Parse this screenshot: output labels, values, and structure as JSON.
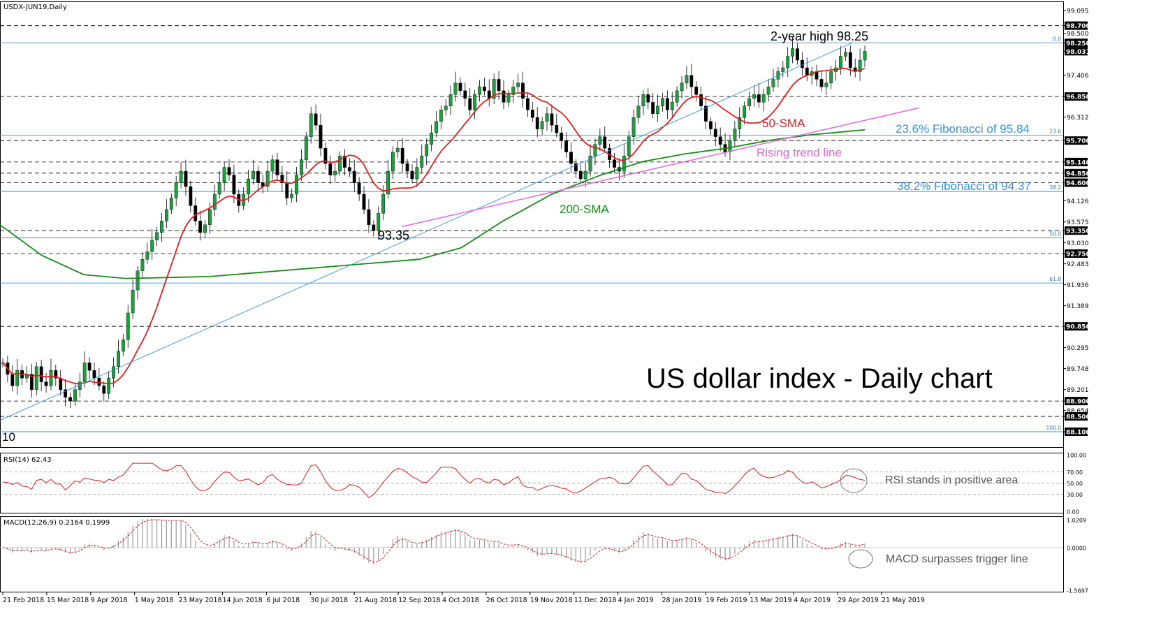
{
  "chart_data": {
    "type": "line",
    "symbol": "USDX-JUN19,Daily",
    "title": "US dollar index - Daily chart",
    "x_dates": [
      "21 Feb 2018",
      "15 Mar 2018",
      "9 Apr 2018",
      "1 May 2018",
      "23 May 2018",
      "14 Jun 2018",
      "6 Jul 2018",
      "30 Jul 2018",
      "21 Aug 2018",
      "12 Sep 2018",
      "4 Oct 2018",
      "26 Oct 2018",
      "19 Nov 2018",
      "11 Dec 2018",
      "4 Jan 2019",
      "28 Jan 2019",
      "19 Feb 2019",
      "13 Mar 2019",
      "4 Apr 2019",
      "29 Apr 2019",
      "21 May 2019"
    ],
    "price_ticks": [
      "99.095",
      "98.700",
      "98.500",
      "98.250",
      "98.031",
      "97.406",
      "96.850",
      "96.312",
      "95.700",
      "95.140",
      "94.850",
      "94.600",
      "94.126",
      "93.575",
      "93.350",
      "93.030",
      "92.750",
      "92.483",
      "91.936",
      "91.389",
      "90.850",
      "90.295",
      "89.748",
      "89.201",
      "88.900",
      "88.654",
      "88.500",
      "88.100"
    ],
    "boxed_levels": [
      "98.700",
      "98.250",
      "98.031",
      "96.850",
      "95.700",
      "95.140",
      "94.850",
      "94.600",
      "93.350",
      "92.750",
      "90.850",
      "88.900",
      "88.500",
      "88.100"
    ],
    "horizontal_levels": [
      98.7,
      96.85,
      95.7,
      95.14,
      94.85,
      94.6,
      93.35,
      92.75,
      90.85,
      88.9,
      88.5
    ],
    "fib_levels": [
      {
        "tag": "0.0",
        "value": 98.25
      },
      {
        "tag": "23.6",
        "value": 95.84
      },
      {
        "tag": "38.2",
        "value": 94.37
      },
      {
        "tag": "50.0",
        "value": 93.16
      },
      {
        "tag": "61.8",
        "value": 91.98
      },
      {
        "tag": "100.0",
        "value": 88.1
      }
    ],
    "annotations": {
      "high": "2-year high 98.25",
      "low": "93.35",
      "fib236": "23.6% Fibonacci of 95.84",
      "fib382": "38.2% Fibonacci of 94.37",
      "sma50": "50-SMA",
      "sma200": "200-SMA",
      "trend": "Rising trend line",
      "start_low": "10"
    },
    "close_series": [
      89.9,
      89.6,
      89.3,
      89.7,
      89.5,
      89.6,
      89.2,
      89.8,
      89.4,
      89.3,
      89.7,
      89.5,
      89.2,
      89.0,
      88.9,
      89.2,
      89.4,
      89.9,
      89.7,
      89.5,
      89.3,
      89.1,
      89.5,
      89.8,
      90.2,
      90.5,
      91.2,
      91.8,
      92.3,
      92.6,
      92.8,
      93.1,
      93.3,
      93.6,
      93.9,
      94.2,
      94.6,
      94.9,
      94.5,
      94.0,
      93.6,
      93.3,
      93.5,
      93.9,
      94.3,
      94.6,
      95.0,
      94.8,
      94.3,
      94.0,
      94.3,
      94.7,
      94.9,
      94.6,
      94.5,
      94.9,
      95.2,
      94.8,
      94.6,
      94.2,
      94.3,
      94.8,
      95.2,
      95.8,
      96.4,
      96.1,
      95.5,
      95.1,
      94.8,
      94.9,
      95.3,
      95.0,
      94.9,
      94.6,
      94.3,
      93.9,
      93.5,
      93.35,
      93.8,
      94.3,
      94.9,
      95.4,
      95.5,
      95.1,
      94.9,
      94.7,
      95.0,
      95.3,
      95.6,
      95.9,
      96.2,
      96.5,
      96.6,
      96.9,
      97.2,
      97.0,
      96.8,
      96.5,
      96.9,
      97.1,
      97.0,
      96.8,
      97.3,
      97.0,
      96.7,
      96.9,
      97.1,
      97.2,
      96.8,
      96.5,
      96.3,
      96.0,
      96.2,
      96.4,
      96.1,
      95.9,
      95.7,
      95.4,
      95.1,
      94.9,
      94.7,
      94.9,
      95.3,
      95.6,
      95.8,
      95.5,
      95.2,
      95.0,
      94.9,
      95.3,
      95.8,
      96.3,
      96.6,
      96.9,
      96.7,
      96.4,
      96.6,
      96.8,
      96.5,
      96.7,
      97.0,
      97.2,
      97.4,
      97.1,
      96.9,
      96.6,
      96.2,
      96.0,
      95.8,
      95.6,
      95.4,
      95.7,
      96.0,
      96.3,
      96.6,
      96.8,
      96.9,
      96.7,
      96.9,
      97.1,
      97.3,
      97.5,
      97.6,
      97.9,
      98.1,
      97.8,
      97.6,
      97.4,
      97.5,
      97.3,
      97.1,
      97.2,
      97.5,
      97.6,
      97.9,
      98.0,
      97.6,
      97.5,
      97.8,
      98.03
    ],
    "sma50_label": "50-SMA",
    "rsi": {
      "label": "RSI(14) 62.43",
      "ticks": [
        "100.00",
        "70.00",
        "50.00",
        "30.00",
        "0.00"
      ],
      "levels": [
        70,
        50,
        30
      ],
      "note": "RSI stands in positive area"
    },
    "macd": {
      "label": "MACD(12,26,9) 0.2164 0.1999",
      "ticks": [
        "1.0209",
        "0.0000",
        "-1.5697"
      ],
      "note": "MACD surpasses trigger line"
    }
  }
}
